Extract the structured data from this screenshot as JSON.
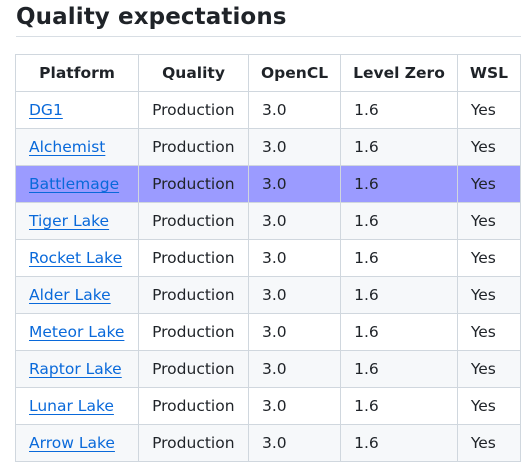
{
  "heading": "Quality expectations",
  "table": {
    "columns": [
      "Platform",
      "Quality",
      "OpenCL",
      "Level Zero",
      "WSL"
    ],
    "rows": [
      {
        "platform": "DG1",
        "quality": "Production",
        "opencl": "3.0",
        "level_zero": "1.6",
        "wsl": "Yes"
      },
      {
        "platform": "Alchemist",
        "quality": "Production",
        "opencl": "3.0",
        "level_zero": "1.6",
        "wsl": "Yes"
      },
      {
        "platform": "Battlemage",
        "quality": "Production",
        "opencl": "3.0",
        "level_zero": "1.6",
        "wsl": "Yes"
      },
      {
        "platform": "Tiger Lake",
        "quality": "Production",
        "opencl": "3.0",
        "level_zero": "1.6",
        "wsl": "Yes"
      },
      {
        "platform": "Rocket Lake",
        "quality": "Production",
        "opencl": "3.0",
        "level_zero": "1.6",
        "wsl": "Yes"
      },
      {
        "platform": "Alder Lake",
        "quality": "Production",
        "opencl": "3.0",
        "level_zero": "1.6",
        "wsl": "Yes"
      },
      {
        "platform": "Meteor Lake",
        "quality": "Production",
        "opencl": "3.0",
        "level_zero": "1.6",
        "wsl": "Yes"
      },
      {
        "platform": "Raptor Lake",
        "quality": "Production",
        "opencl": "3.0",
        "level_zero": "1.6",
        "wsl": "Yes"
      },
      {
        "platform": "Lunar Lake",
        "quality": "Production",
        "opencl": "3.0",
        "level_zero": "1.6",
        "wsl": "Yes"
      },
      {
        "platform": "Arrow Lake",
        "quality": "Production",
        "opencl": "3.0",
        "level_zero": "1.6",
        "wsl": "Yes"
      }
    ]
  },
  "colors": {
    "link": "#0969da",
    "highlight_row": "#9b9bff",
    "zebra_row": "#f6f8fa",
    "border": "#d0d7de"
  }
}
